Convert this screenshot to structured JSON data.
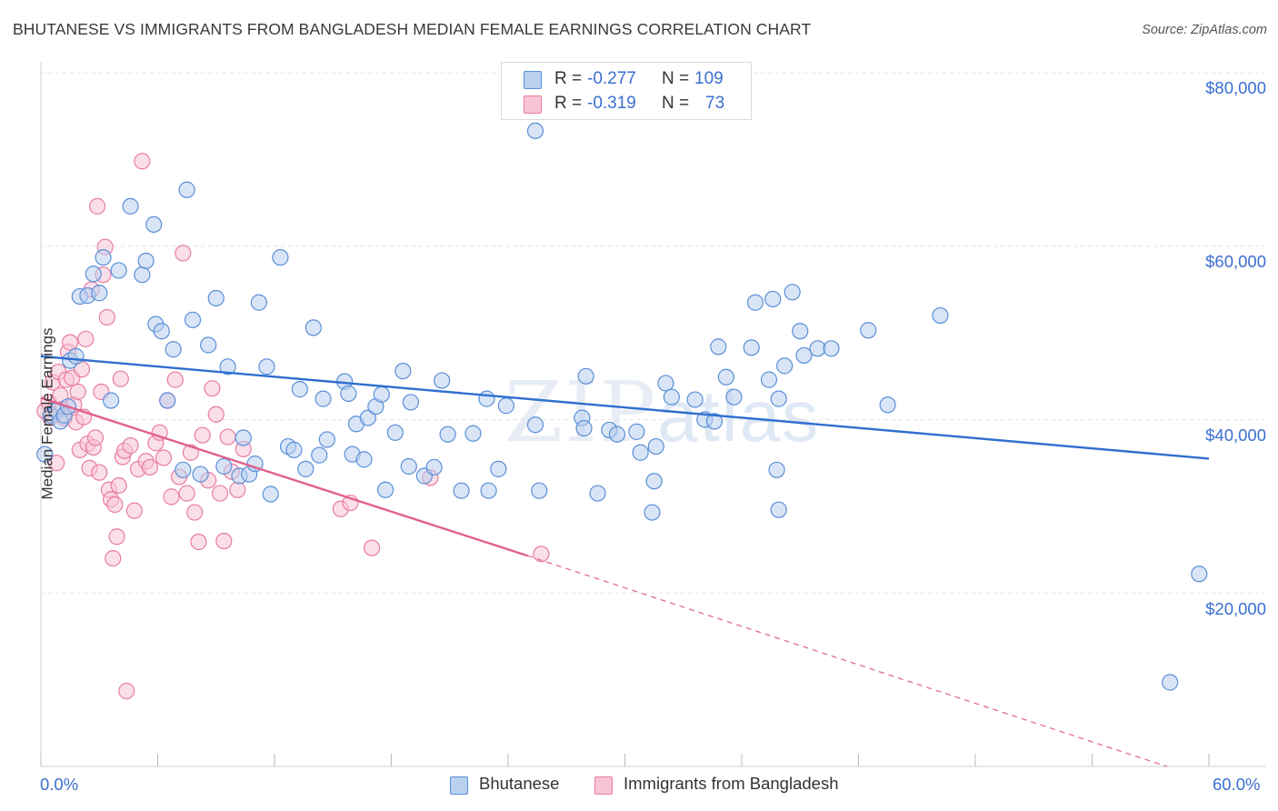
{
  "title": "BHUTANESE VS IMMIGRANTS FROM BANGLADESH MEDIAN FEMALE EARNINGS CORRELATION CHART",
  "source": "Source: ZipAtlas.com",
  "watermark": {
    "zip": "ZIP",
    "atlas": "atlas"
  },
  "colors": {
    "blue_fill": "#b9d0ef",
    "blue_stroke": "#5a8fd8",
    "blue_line": "#2f6fd0",
    "pink_fill": "#f7c4d5",
    "pink_stroke": "#e87da2",
    "pink_line": "#e0608f",
    "tick_text": "#3b6fcf",
    "grid": "#e4e4e4"
  },
  "legend": {
    "rows": [
      {
        "r_label": "R = ",
        "r_value": "-0.277",
        "n_label": "N = ",
        "n_value": "109"
      },
      {
        "r_label": "R = ",
        "r_value": "-0.319",
        "n_label": "N = ",
        "n_value": "73"
      }
    ]
  },
  "bottom_legend": [
    "Bhutanese",
    "Immigrants from Bangladesh"
  ],
  "axes": {
    "ylabel": "Median Female Earnings",
    "x_min_label": "0.0%",
    "x_max_label": "60.0%",
    "y_ticks": [
      "$80,000",
      "$60,000",
      "$40,000",
      "$20,000"
    ]
  },
  "chart_data": {
    "type": "scatter",
    "title": "BHUTANESE VS IMMIGRANTS FROM BANGLADESH MEDIAN FEMALE EARNINGS CORRELATION CHART",
    "xlabel": "",
    "ylabel": "Median Female Earnings",
    "xlim": [
      0,
      60
    ],
    "ylim": [
      0,
      80000
    ],
    "y_ticks": [
      20000,
      40000,
      60000,
      80000
    ],
    "grid": true,
    "legend_position": "top-center",
    "series": [
      {
        "name": "Bhutanese",
        "r": -0.277,
        "n": 109,
        "trend": {
          "x": [
            0,
            60
          ],
          "y": [
            47300,
            35500
          ]
        },
        "points": [
          [
            0.2,
            36000
          ],
          [
            0.5,
            40500
          ],
          [
            0.8,
            41000
          ],
          [
            1.0,
            39800
          ],
          [
            1.2,
            40500
          ],
          [
            1.4,
            41500
          ],
          [
            1.5,
            46800
          ],
          [
            1.8,
            47300
          ],
          [
            2.0,
            54200
          ],
          [
            2.4,
            54300
          ],
          [
            2.7,
            56800
          ],
          [
            3.0,
            54600
          ],
          [
            3.2,
            58700
          ],
          [
            3.6,
            42200
          ],
          [
            4.0,
            57200
          ],
          [
            4.6,
            64600
          ],
          [
            5.2,
            56700
          ],
          [
            5.4,
            58300
          ],
          [
            5.8,
            62500
          ],
          [
            5.9,
            51000
          ],
          [
            6.2,
            50200
          ],
          [
            6.5,
            42200
          ],
          [
            6.8,
            48100
          ],
          [
            7.3,
            34200
          ],
          [
            7.5,
            66500
          ],
          [
            7.8,
            51500
          ],
          [
            8.2,
            33700
          ],
          [
            8.6,
            48600
          ],
          [
            9.0,
            54000
          ],
          [
            9.4,
            34600
          ],
          [
            9.6,
            46100
          ],
          [
            10.2,
            33500
          ],
          [
            10.4,
            37900
          ],
          [
            10.7,
            33700
          ],
          [
            11.0,
            34900
          ],
          [
            11.2,
            53500
          ],
          [
            11.6,
            46100
          ],
          [
            11.8,
            31400
          ],
          [
            12.3,
            58700
          ],
          [
            12.7,
            36900
          ],
          [
            13.0,
            36500
          ],
          [
            13.3,
            43500
          ],
          [
            13.6,
            34300
          ],
          [
            14.0,
            50600
          ],
          [
            14.3,
            35900
          ],
          [
            14.5,
            42400
          ],
          [
            14.7,
            37700
          ],
          [
            15.6,
            44400
          ],
          [
            15.8,
            43000
          ],
          [
            16.0,
            36000
          ],
          [
            16.2,
            39500
          ],
          [
            16.6,
            35400
          ],
          [
            16.8,
            40200
          ],
          [
            17.2,
            41500
          ],
          [
            17.5,
            42900
          ],
          [
            17.7,
            31900
          ],
          [
            18.2,
            38500
          ],
          [
            18.6,
            45600
          ],
          [
            18.9,
            34600
          ],
          [
            19.0,
            42000
          ],
          [
            19.7,
            33500
          ],
          [
            20.2,
            34500
          ],
          [
            20.6,
            44500
          ],
          [
            20.9,
            38300
          ],
          [
            21.6,
            31800
          ],
          [
            22.2,
            38400
          ],
          [
            22.9,
            42400
          ],
          [
            23.0,
            31800
          ],
          [
            23.5,
            34300
          ],
          [
            23.9,
            41600
          ],
          [
            25.4,
            39400
          ],
          [
            25.6,
            31800
          ],
          [
            25.4,
            73300
          ],
          [
            27.8,
            40200
          ],
          [
            27.9,
            39000
          ],
          [
            28.0,
            45000
          ],
          [
            28.6,
            31500
          ],
          [
            29.2,
            38800
          ],
          [
            29.6,
            38300
          ],
          [
            30.6,
            38600
          ],
          [
            30.8,
            36200
          ],
          [
            31.4,
            29300
          ],
          [
            31.5,
            32900
          ],
          [
            31.6,
            36900
          ],
          [
            32.1,
            44200
          ],
          [
            32.4,
            42600
          ],
          [
            33.6,
            42300
          ],
          [
            34.1,
            40000
          ],
          [
            34.6,
            39800
          ],
          [
            34.8,
            48400
          ],
          [
            35.2,
            44900
          ],
          [
            35.6,
            42600
          ],
          [
            36.5,
            48300
          ],
          [
            36.7,
            53500
          ],
          [
            37.4,
            44600
          ],
          [
            37.6,
            53900
          ],
          [
            37.8,
            34200
          ],
          [
            37.9,
            42400
          ],
          [
            37.9,
            29600
          ],
          [
            38.2,
            46200
          ],
          [
            38.6,
            54700
          ],
          [
            39.0,
            50200
          ],
          [
            39.2,
            47400
          ],
          [
            39.9,
            48200
          ],
          [
            40.6,
            48200
          ],
          [
            42.5,
            50300
          ],
          [
            43.5,
            41700
          ],
          [
            46.2,
            52000
          ],
          [
            59.5,
            22200
          ],
          [
            58.0,
            9700
          ]
        ]
      },
      {
        "name": "Immigrants from Bangladesh",
        "r": -0.319,
        "n": 73,
        "trend": {
          "x": [
            0,
            25
          ],
          "y": [
            42500,
            24300
          ]
        },
        "trend_dashed": {
          "x": [
            25,
            60
          ],
          "y": [
            24300,
            -1600
          ]
        },
        "points": [
          [
            0.2,
            41000
          ],
          [
            0.4,
            42000
          ],
          [
            0.5,
            40200
          ],
          [
            0.6,
            44300
          ],
          [
            0.8,
            35000
          ],
          [
            0.9,
            45500
          ],
          [
            1.0,
            42800
          ],
          [
            1.1,
            41200
          ],
          [
            1.2,
            40200
          ],
          [
            1.3,
            44600
          ],
          [
            1.4,
            47800
          ],
          [
            1.5,
            48900
          ],
          [
            1.6,
            44800
          ],
          [
            1.7,
            41700
          ],
          [
            1.8,
            39700
          ],
          [
            1.9,
            43200
          ],
          [
            2.0,
            36500
          ],
          [
            2.1,
            45800
          ],
          [
            2.2,
            40300
          ],
          [
            2.3,
            49300
          ],
          [
            2.4,
            37200
          ],
          [
            2.5,
            34400
          ],
          [
            2.6,
            55000
          ],
          [
            2.7,
            36800
          ],
          [
            2.8,
            37900
          ],
          [
            2.9,
            64600
          ],
          [
            3.0,
            33900
          ],
          [
            3.1,
            43200
          ],
          [
            3.2,
            56700
          ],
          [
            3.3,
            59900
          ],
          [
            3.4,
            51800
          ],
          [
            3.5,
            31900
          ],
          [
            3.6,
            30800
          ],
          [
            3.7,
            24000
          ],
          [
            3.8,
            30200
          ],
          [
            3.9,
            26500
          ],
          [
            4.0,
            32400
          ],
          [
            4.1,
            44700
          ],
          [
            4.2,
            35700
          ],
          [
            4.3,
            36400
          ],
          [
            4.4,
            8700
          ],
          [
            4.6,
            37000
          ],
          [
            4.8,
            29500
          ],
          [
            5.0,
            34300
          ],
          [
            5.2,
            69800
          ],
          [
            5.4,
            35200
          ],
          [
            5.6,
            34500
          ],
          [
            5.9,
            37300
          ],
          [
            6.1,
            38500
          ],
          [
            6.3,
            35600
          ],
          [
            6.5,
            42200
          ],
          [
            6.7,
            31100
          ],
          [
            6.9,
            44600
          ],
          [
            7.1,
            33400
          ],
          [
            7.3,
            59200
          ],
          [
            7.5,
            31500
          ],
          [
            7.7,
            36200
          ],
          [
            7.9,
            29300
          ],
          [
            8.1,
            25900
          ],
          [
            8.3,
            38200
          ],
          [
            8.6,
            33000
          ],
          [
            8.8,
            43600
          ],
          [
            9.0,
            40600
          ],
          [
            9.2,
            31500
          ],
          [
            9.4,
            26000
          ],
          [
            9.6,
            38000
          ],
          [
            9.8,
            34000
          ],
          [
            10.1,
            31900
          ],
          [
            10.4,
            36600
          ],
          [
            15.4,
            29700
          ],
          [
            15.9,
            30400
          ],
          [
            17.0,
            25200
          ],
          [
            20.0,
            33300
          ],
          [
            25.7,
            24500
          ]
        ]
      }
    ]
  }
}
